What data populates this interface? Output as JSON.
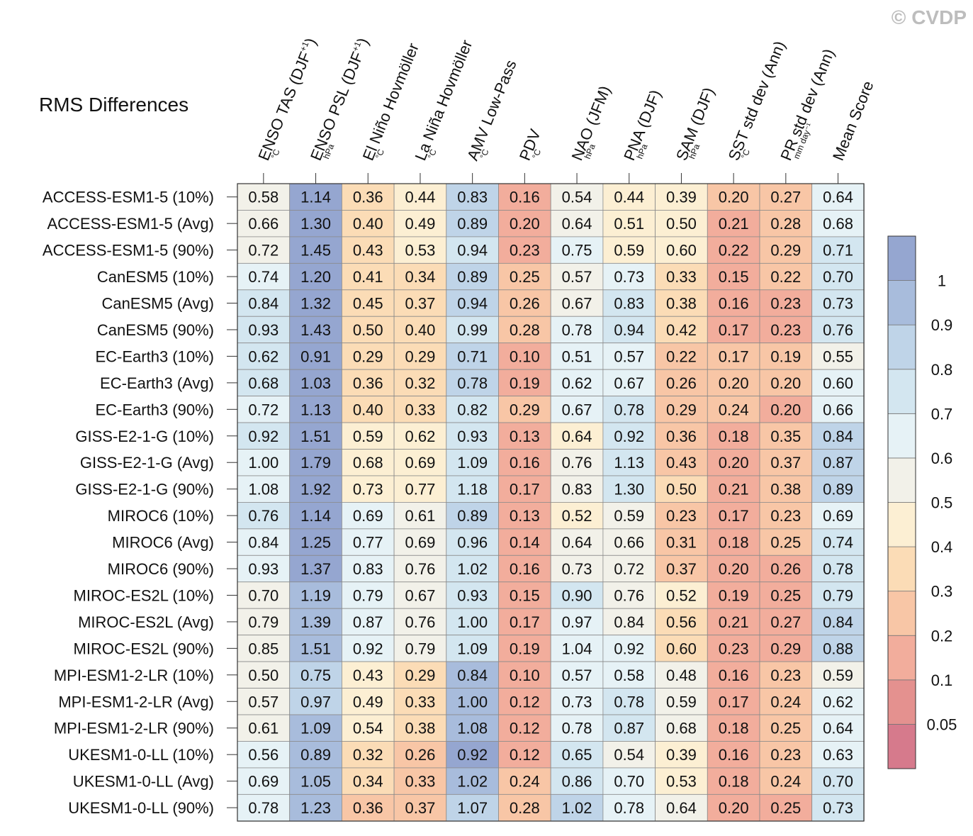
{
  "chart_data": {
    "type": "heatmap",
    "title": "RMS Differences",
    "copyright": "© CVDP",
    "columns": [
      {
        "label": "ENSO TAS (DJF",
        "sup": "+1",
        "label_end": ")",
        "unit": "°C"
      },
      {
        "label": "ENSO PSL (DJF",
        "sup": "+1",
        "label_end": ")",
        "unit": "hPa"
      },
      {
        "label": "El Niño Hovmöller",
        "sup": "",
        "label_end": "",
        "unit": "°C"
      },
      {
        "label": "La Niña Hovmöller",
        "sup": "",
        "label_end": "",
        "unit": "°C"
      },
      {
        "label": "AMV Low-Pass",
        "sup": "",
        "label_end": "",
        "unit": "°C"
      },
      {
        "label": "PDV",
        "sup": "",
        "label_end": "",
        "unit": "°C"
      },
      {
        "label": "NAO (JFM)",
        "sup": "",
        "label_end": "",
        "unit": "hPa"
      },
      {
        "label": "PNA (DJF)",
        "sup": "",
        "label_end": "",
        "unit": "hPa"
      },
      {
        "label": "SAM (DJF)",
        "sup": "",
        "label_end": "",
        "unit": "hPa"
      },
      {
        "label": "SST std dev (Ann)",
        "sup": "",
        "label_end": "",
        "unit": "°C"
      },
      {
        "label": "PR std dev (Ann)",
        "sup": "",
        "label_end": "",
        "unit": "mm day⁻¹"
      },
      {
        "label": "Mean Score",
        "sup": "",
        "label_end": "",
        "unit": ""
      }
    ],
    "rows": [
      "ACCESS-ESM1-5 (10%)",
      "ACCESS-ESM1-5 (Avg)",
      "ACCESS-ESM1-5 (90%)",
      "CanESM5 (10%)",
      "CanESM5 (Avg)",
      "CanESM5 (90%)",
      "EC-Earth3 (10%)",
      "EC-Earth3 (Avg)",
      "EC-Earth3 (90%)",
      "GISS-E2-1-G (10%)",
      "GISS-E2-1-G (Avg)",
      "GISS-E2-1-G (90%)",
      "MIROC6 (10%)",
      "MIROC6 (Avg)",
      "MIROC6 (90%)",
      "MIROC-ES2L (10%)",
      "MIROC-ES2L (Avg)",
      "MIROC-ES2L (90%)",
      "MPI-ESM1-2-LR (10%)",
      "MPI-ESM1-2-LR (Avg)",
      "MPI-ESM1-2-LR (90%)",
      "UKESM1-0-LL (10%)",
      "UKESM1-0-LL (Avg)",
      "UKESM1-0-LL (90%)"
    ],
    "values": [
      [
        "0.58",
        "1.14",
        "0.36",
        "0.44",
        "0.83",
        "0.16",
        "0.54",
        "0.44",
        "0.39",
        "0.20",
        "0.27",
        "0.64"
      ],
      [
        "0.66",
        "1.30",
        "0.40",
        "0.49",
        "0.89",
        "0.20",
        "0.64",
        "0.51",
        "0.50",
        "0.21",
        "0.28",
        "0.68"
      ],
      [
        "0.72",
        "1.45",
        "0.43",
        "0.53",
        "0.94",
        "0.23",
        "0.75",
        "0.59",
        "0.60",
        "0.22",
        "0.29",
        "0.71"
      ],
      [
        "0.74",
        "1.20",
        "0.41",
        "0.34",
        "0.89",
        "0.25",
        "0.57",
        "0.73",
        "0.33",
        "0.15",
        "0.22",
        "0.70"
      ],
      [
        "0.84",
        "1.32",
        "0.45",
        "0.37",
        "0.94",
        "0.26",
        "0.67",
        "0.83",
        "0.38",
        "0.16",
        "0.23",
        "0.73"
      ],
      [
        "0.93",
        "1.43",
        "0.50",
        "0.40",
        "0.99",
        "0.28",
        "0.78",
        "0.94",
        "0.42",
        "0.17",
        "0.23",
        "0.76"
      ],
      [
        "0.62",
        "0.91",
        "0.29",
        "0.29",
        "0.71",
        "0.10",
        "0.51",
        "0.57",
        "0.22",
        "0.17",
        "0.19",
        "0.55"
      ],
      [
        "0.68",
        "1.03",
        "0.36",
        "0.32",
        "0.78",
        "0.19",
        "0.62",
        "0.67",
        "0.26",
        "0.20",
        "0.20",
        "0.60"
      ],
      [
        "0.72",
        "1.13",
        "0.40",
        "0.33",
        "0.82",
        "0.29",
        "0.67",
        "0.78",
        "0.29",
        "0.24",
        "0.20",
        "0.66"
      ],
      [
        "0.92",
        "1.51",
        "0.59",
        "0.62",
        "0.93",
        "0.13",
        "0.64",
        "0.92",
        "0.36",
        "0.18",
        "0.35",
        "0.84"
      ],
      [
        "1.00",
        "1.79",
        "0.68",
        "0.69",
        "1.09",
        "0.16",
        "0.76",
        "1.13",
        "0.43",
        "0.20",
        "0.37",
        "0.87"
      ],
      [
        "1.08",
        "1.92",
        "0.73",
        "0.77",
        "1.18",
        "0.17",
        "0.83",
        "1.30",
        "0.50",
        "0.21",
        "0.38",
        "0.89"
      ],
      [
        "0.76",
        "1.14",
        "0.69",
        "0.61",
        "0.89",
        "0.13",
        "0.52",
        "0.59",
        "0.23",
        "0.17",
        "0.23",
        "0.69"
      ],
      [
        "0.84",
        "1.25",
        "0.77",
        "0.69",
        "0.96",
        "0.14",
        "0.64",
        "0.66",
        "0.31",
        "0.18",
        "0.25",
        "0.74"
      ],
      [
        "0.93",
        "1.37",
        "0.83",
        "0.76",
        "1.02",
        "0.16",
        "0.73",
        "0.72",
        "0.37",
        "0.20",
        "0.26",
        "0.78"
      ],
      [
        "0.70",
        "1.19",
        "0.79",
        "0.67",
        "0.93",
        "0.15",
        "0.90",
        "0.76",
        "0.52",
        "0.19",
        "0.25",
        "0.79"
      ],
      [
        "0.79",
        "1.39",
        "0.87",
        "0.76",
        "1.00",
        "0.17",
        "0.97",
        "0.84",
        "0.56",
        "0.21",
        "0.27",
        "0.84"
      ],
      [
        "0.85",
        "1.51",
        "0.92",
        "0.79",
        "1.09",
        "0.19",
        "1.04",
        "0.92",
        "0.60",
        "0.23",
        "0.29",
        "0.88"
      ],
      [
        "0.50",
        "0.75",
        "0.43",
        "0.29",
        "0.84",
        "0.10",
        "0.57",
        "0.58",
        "0.48",
        "0.16",
        "0.23",
        "0.59"
      ],
      [
        "0.57",
        "0.97",
        "0.49",
        "0.33",
        "1.00",
        "0.12",
        "0.73",
        "0.78",
        "0.59",
        "0.17",
        "0.24",
        "0.62"
      ],
      [
        "0.61",
        "1.09",
        "0.54",
        "0.38",
        "1.08",
        "0.12",
        "0.78",
        "0.87",
        "0.68",
        "0.18",
        "0.25",
        "0.64"
      ],
      [
        "0.56",
        "0.89",
        "0.32",
        "0.26",
        "0.92",
        "0.12",
        "0.65",
        "0.54",
        "0.39",
        "0.16",
        "0.23",
        "0.63"
      ],
      [
        "0.69",
        "1.05",
        "0.34",
        "0.33",
        "1.02",
        "0.24",
        "0.86",
        "0.70",
        "0.53",
        "0.18",
        "0.24",
        "0.70"
      ],
      [
        "0.78",
        "1.23",
        "0.36",
        "0.37",
        "1.07",
        "0.28",
        "1.02",
        "0.78",
        "0.64",
        "0.20",
        "0.25",
        "0.73"
      ]
    ],
    "colorbar": {
      "labels": [
        "1",
        "0.9",
        "0.8",
        "0.7",
        "0.6",
        "0.5",
        "0.4",
        "0.3",
        "0.2",
        "0.1",
        "0.05"
      ],
      "levels": [
        0.05,
        0.1,
        0.2,
        0.3,
        0.4,
        0.5,
        0.6,
        0.7,
        0.8,
        0.9,
        1
      ],
      "colors": [
        "#d67a8c",
        "#e4918f",
        "#f2ad9c",
        "#f8c6a6",
        "#fbdcb6",
        "#fcefd3",
        "#f2f1e9",
        "#e6f2f6",
        "#d3e6f0",
        "#bfd4e8",
        "#a8bcdc",
        "#95a6d0"
      ]
    }
  }
}
